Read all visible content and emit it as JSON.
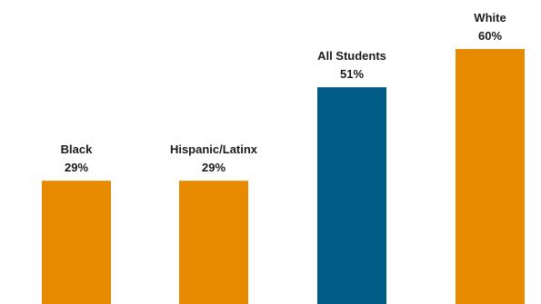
{
  "chart_data": {
    "type": "bar",
    "categories": [
      "Black",
      "Hispanic/Latinx",
      "All Students",
      "White"
    ],
    "values": [
      29,
      29,
      51,
      60
    ],
    "value_labels": [
      "29%",
      "29%",
      "51%",
      "60%"
    ],
    "ylim": [
      0,
      60
    ],
    "grid": false,
    "legend": "none",
    "colors": [
      "#E88A00",
      "#E88A00",
      "#005B85",
      "#E88A00"
    ]
  }
}
